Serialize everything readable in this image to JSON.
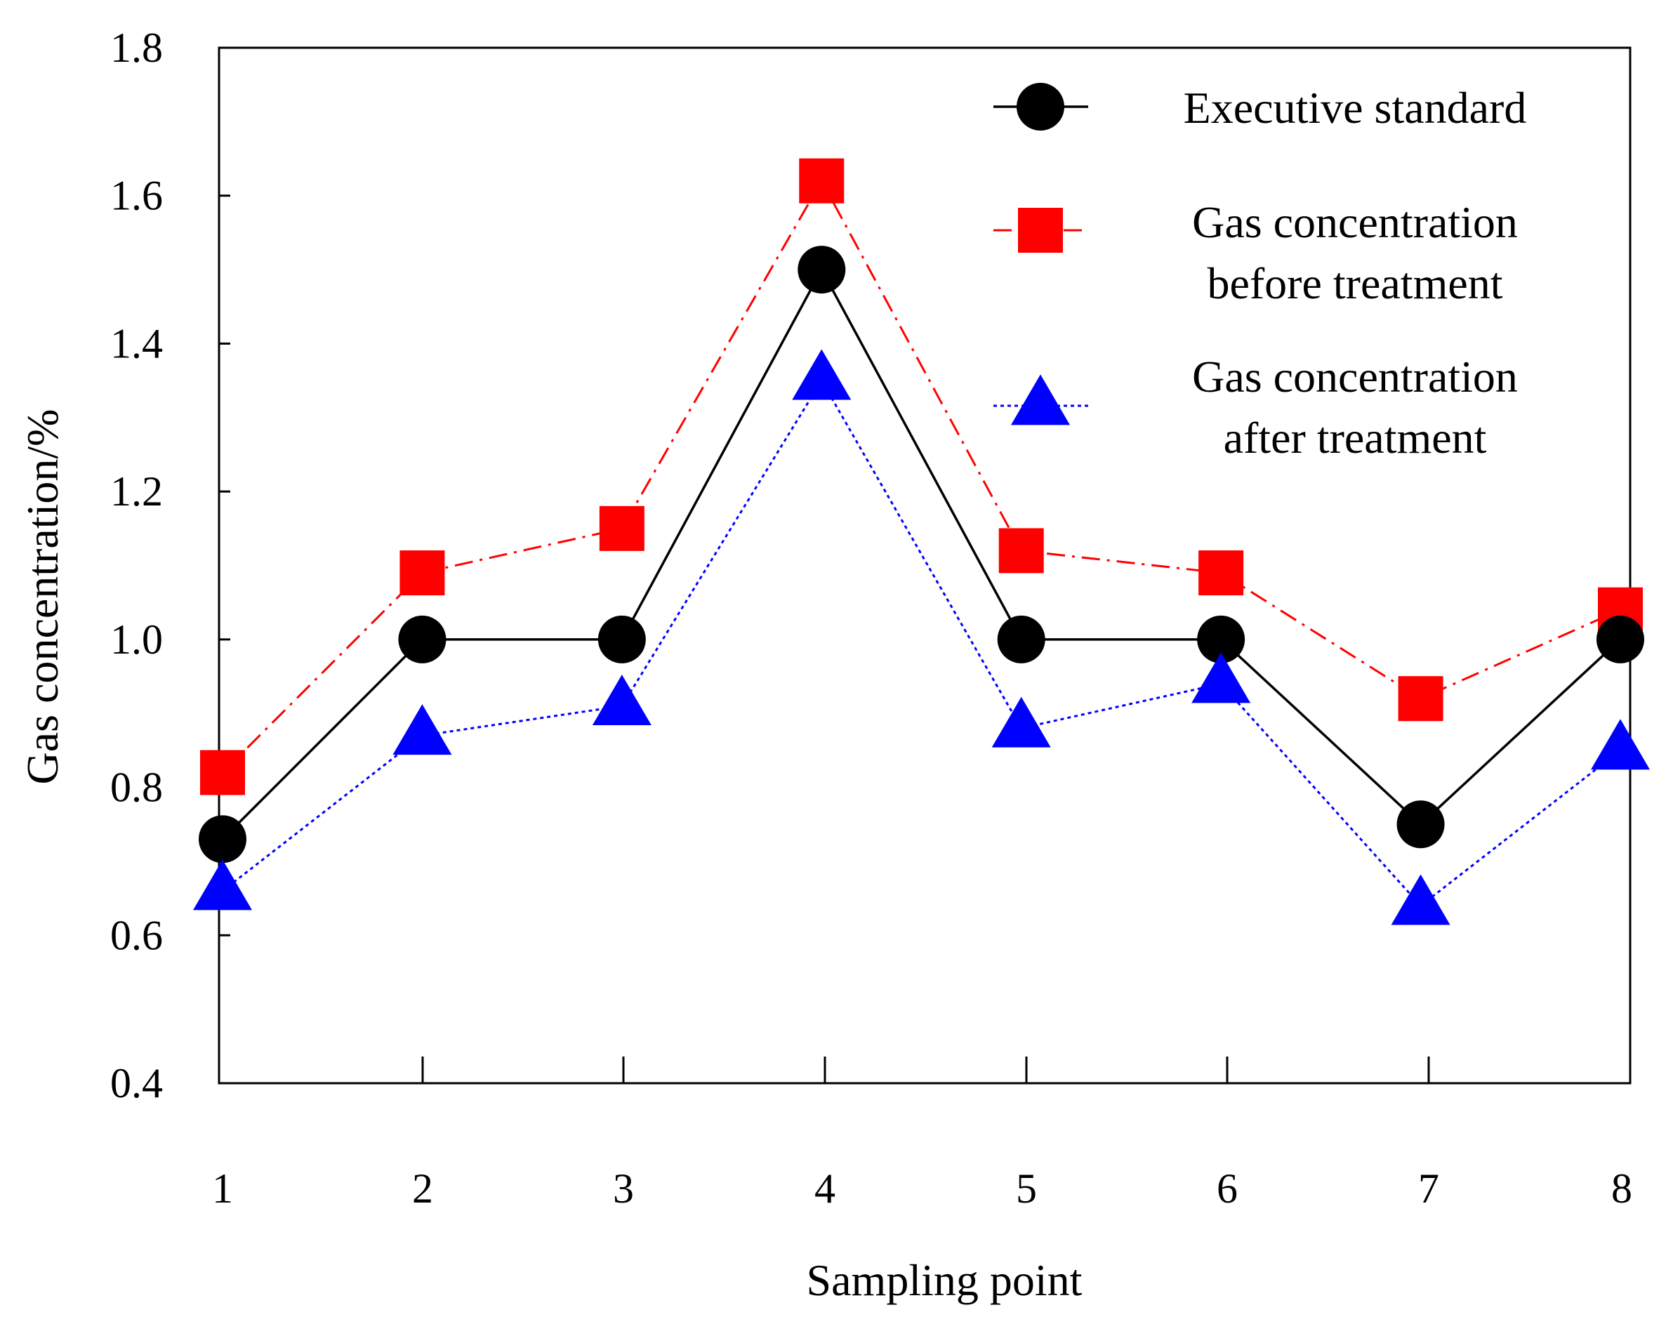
{
  "chart_data": {
    "type": "line",
    "title": "",
    "xlabel": "Sampling point",
    "ylabel": "Gas concentration/%",
    "categories": [
      "1",
      "2",
      "3",
      "4",
      "5",
      "6",
      "7",
      "8"
    ],
    "x": [
      1,
      2,
      3,
      4,
      5,
      6,
      7,
      8
    ],
    "xlim": [
      1,
      8
    ],
    "ylim": [
      0.4,
      1.8
    ],
    "yticks": [
      0.4,
      0.6,
      0.8,
      1.0,
      1.2,
      1.4,
      1.6,
      1.8
    ],
    "ytick_labels": [
      "0.4",
      "0.6",
      "0.8",
      "1.0",
      "1.2",
      "1.4",
      "1.6",
      "1.8"
    ],
    "grid": false,
    "legend_position": "top-right",
    "series": [
      {
        "name": "Executive standard",
        "legend_lines": [
          "Executive standard"
        ],
        "values": [
          0.73,
          1.0,
          1.0,
          1.5,
          1.0,
          1.0,
          0.75,
          1.0
        ],
        "color": "#000000",
        "marker": "circle",
        "line_style": "solid"
      },
      {
        "name": "Gas concentration before treatment",
        "legend_lines": [
          "Gas concentration",
          "before treatment"
        ],
        "values": [
          0.82,
          1.09,
          1.15,
          1.62,
          1.12,
          1.09,
          0.92,
          1.04
        ],
        "color": "#ff0000",
        "marker": "square",
        "line_style": "dashdot"
      },
      {
        "name": "Gas concentration after treatment",
        "legend_lines": [
          "Gas concentration",
          "after treatment"
        ],
        "values": [
          0.66,
          0.87,
          0.91,
          1.35,
          0.88,
          0.94,
          0.64,
          0.85
        ],
        "color": "#0000ff",
        "marker": "triangle",
        "line_style": "dotted"
      }
    ]
  }
}
